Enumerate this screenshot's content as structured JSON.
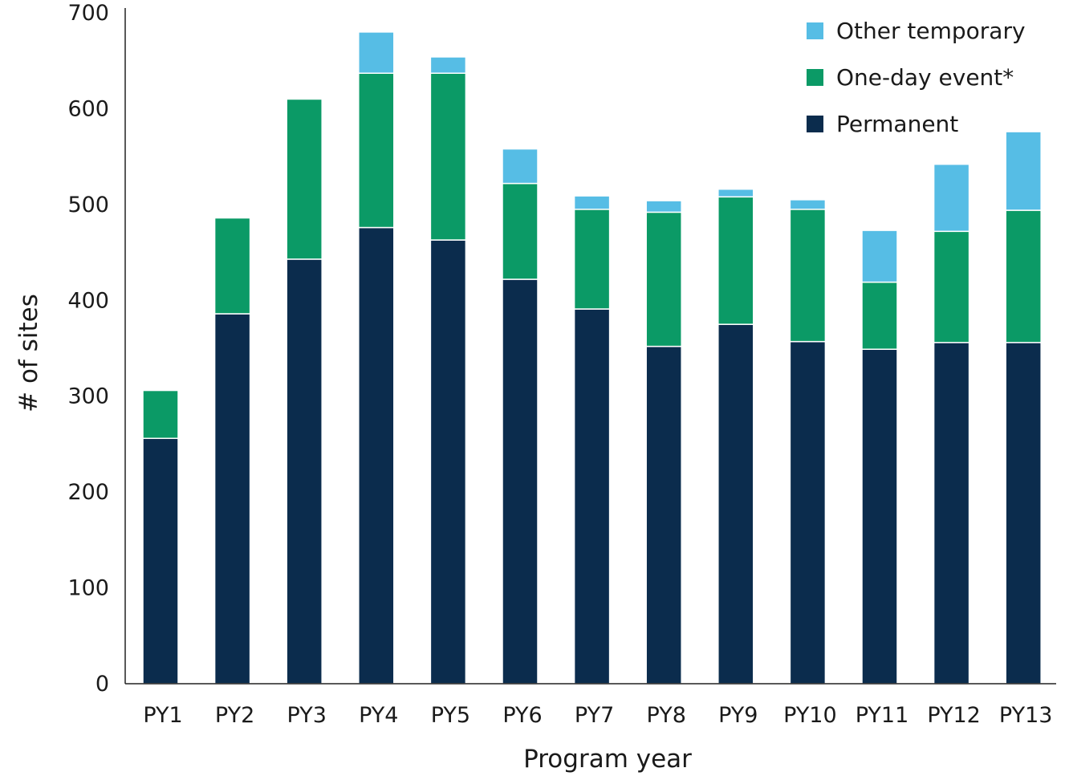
{
  "chart_data": {
    "type": "bar",
    "stacked": true,
    "title": "",
    "xlabel": "Program year",
    "ylabel": "# of sites",
    "ylim": [
      0,
      700
    ],
    "yticks": [
      0,
      100,
      200,
      300,
      400,
      500,
      600,
      700
    ],
    "grid": false,
    "legend_position": "top-right",
    "categories": [
      "PY1",
      "PY2",
      "PY3",
      "PY4",
      "PY5",
      "PY6",
      "PY7",
      "PY8",
      "PY9",
      "PY10",
      "PY11",
      "PY12",
      "PY13"
    ],
    "series": [
      {
        "name": "Permanent",
        "color": "#0b2c4d",
        "values": [
          256,
          386,
          443,
          476,
          463,
          422,
          391,
          352,
          375,
          357,
          349,
          356,
          356
        ]
      },
      {
        "name": "One-day event*",
        "color": "#0b9a66",
        "values": [
          50,
          100,
          167,
          161,
          174,
          100,
          104,
          140,
          133,
          138,
          70,
          116,
          138
        ]
      },
      {
        "name": "Other temporary",
        "color": "#56bde5",
        "values": [
          0,
          0,
          0,
          43,
          17,
          36,
          14,
          12,
          8,
          10,
          54,
          70,
          82
        ]
      }
    ],
    "legend_order": [
      "Other temporary",
      "One-day event*",
      "Permanent"
    ]
  }
}
